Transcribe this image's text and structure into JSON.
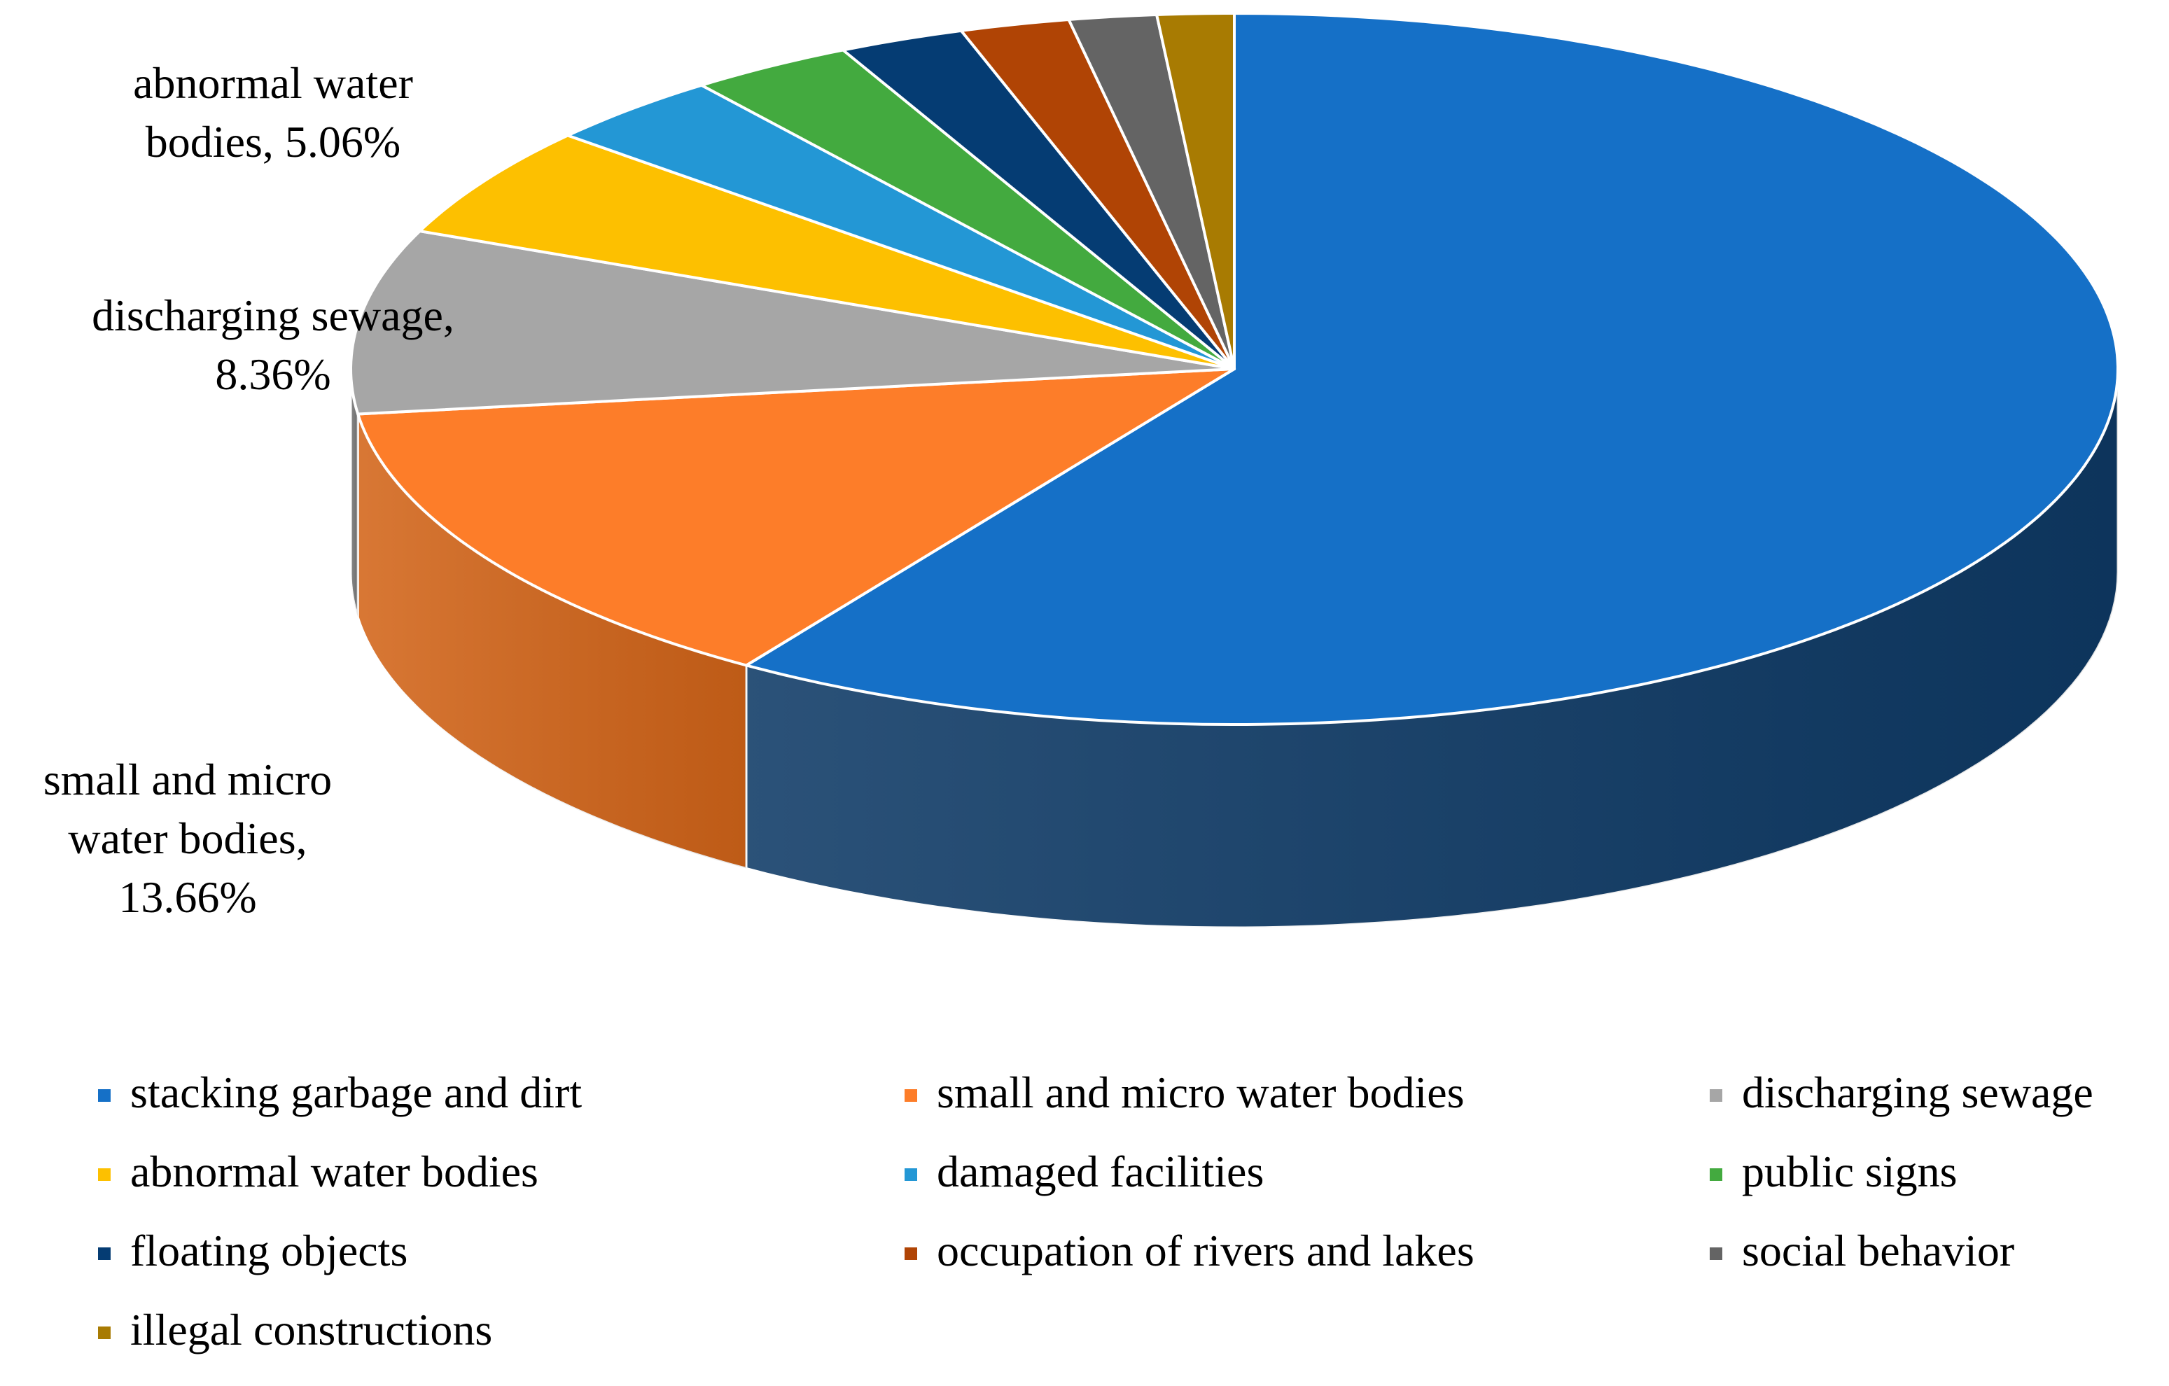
{
  "chart_data": {
    "type": "pie",
    "style": "3d",
    "title": "",
    "categories": [
      "stacking garbage and dirt",
      "small and micro water bodies",
      "discharging sewage",
      "abnormal water bodies",
      "damaged facilities",
      "public signs",
      "floating objects",
      "occupation of rivers and lakes",
      "social behavior",
      "illegal constructions"
    ],
    "values": [
      59.3,
      13.66,
      8.36,
      5.06,
      3.3,
      3.0,
      2.3,
      2.0,
      1.6,
      1.4
    ],
    "colors": [
      "#1570c7",
      "#fd7d29",
      "#a6a6a6",
      "#fdc000",
      "#2397d5",
      "#43aa3f",
      "#053c73",
      "#b04405",
      "#646464",
      "#a87b02"
    ],
    "side_colors": [
      "#0e3a66",
      "#d36519",
      "#7a7a7a",
      "#c99700",
      "#1670a0",
      "#2f7c2c",
      "#02223f",
      "#7d3004",
      "#444444",
      "#7a5900"
    ],
    "data_labels": [
      {
        "category": "discharging sewage",
        "lines": [
          "discharging sewage,",
          "8.36%"
        ]
      },
      {
        "category": "abnormal water bodies",
        "lines": [
          "abnormal water",
          "bodies, 5.06%"
        ]
      },
      {
        "category": "small and micro water bodies",
        "lines": [
          "small and micro",
          "water bodies,",
          "13.66%"
        ]
      }
    ],
    "legend": {
      "placement": "bottom",
      "columns": 3,
      "entries": [
        "stacking garbage and dirt",
        "small and micro water bodies",
        "discharging sewage",
        "abnormal water bodies",
        "damaged facilities",
        "public signs",
        "floating objects",
        "occupation of rivers and lakes",
        "social behavior",
        "illegal constructions"
      ]
    }
  }
}
